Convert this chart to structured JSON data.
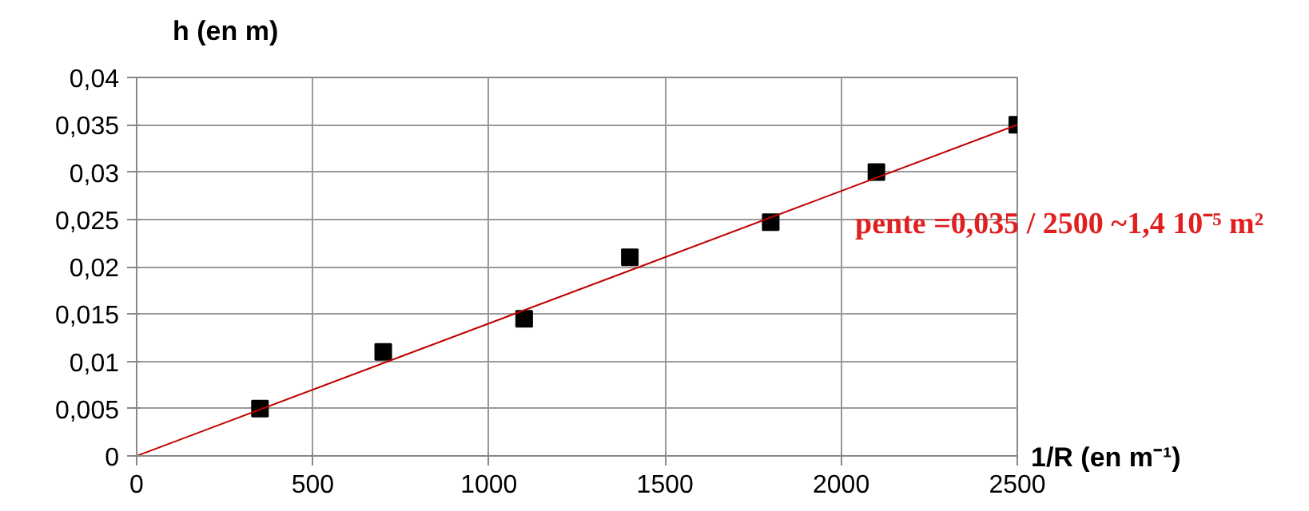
{
  "chart_data": {
    "type": "scatter",
    "xlabel": "1/R (en m⁻¹)",
    "ylabel": "h (en m)",
    "x": [
      350,
      700,
      1100,
      1400,
      1800,
      2100,
      2500
    ],
    "series": [
      {
        "color": "#000000",
        "marker": "square",
        "values": [
          0.005,
          0.011,
          0.0145,
          0.021,
          0.0247,
          0.03,
          0.035
        ]
      },
      {
        "type": "line",
        "color": "#c00000",
        "x": [
          0,
          2500
        ],
        "values": [
          0,
          0.035
        ],
        "marker": "none",
        "line_style": "solid"
      }
    ],
    "xlim": [
      0,
      2500
    ],
    "ylim": [
      0,
      0.04
    ],
    "xticks": [
      0,
      500,
      1000,
      1500,
      2000,
      2500
    ],
    "yticks": [
      0,
      {
        "value": 0.005,
        "label": "0,005"
      },
      {
        "value": 0.01,
        "label": "0,01"
      },
      {
        "value": 0.015,
        "label": "0,015"
      },
      {
        "value": 0.02,
        "label": "0,02"
      },
      {
        "value": 0.025,
        "label": "0,025"
      },
      {
        "value": 0.03,
        "label": "0,03"
      },
      {
        "value": 0.035,
        "label": "0,035"
      },
      {
        "value": 0.04,
        "label": "0,04"
      }
    ],
    "annotations": [
      "pente =0,035 / 2500 ~1,4 10⁻⁵ m²"
    ],
    "grid": true
  }
}
